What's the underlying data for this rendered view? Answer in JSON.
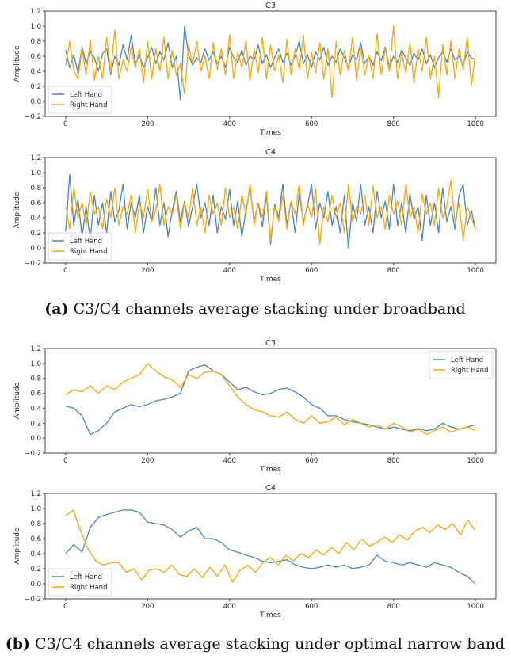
{
  "colors": {
    "left": "#4a86c0",
    "right": "#ffa500",
    "axis": "#444444"
  },
  "captions": [
    {
      "label": "(a)",
      "text": "C3/C4 channels average stacking under broadband"
    },
    {
      "label": "(b)",
      "text": "C3/C4 channels average stacking under optimal narrow band"
    }
  ],
  "chart_data": [
    {
      "type": "line",
      "title": "C3",
      "xlabel": "Times",
      "ylabel": "Amplitude",
      "xlim": [
        -50,
        1050
      ],
      "ylim": [
        -0.2,
        1.2
      ],
      "xticks": [
        "0",
        "200",
        "400",
        "600",
        "800",
        "1000"
      ],
      "yticks": [
        "−0.2",
        "0.0",
        "0.2",
        "0.4",
        "0.6",
        "0.8",
        "1.0",
        "1.2"
      ],
      "legend_placement": "lower-left",
      "x_start": 0,
      "x_end": 1000,
      "series": [
        {
          "name": "Left Hand",
          "values": [
            0.68,
            0.45,
            0.62,
            0.38,
            0.72,
            0.5,
            0.66,
            0.58,
            0.4,
            0.63,
            0.7,
            0.35,
            0.6,
            0.48,
            0.75,
            0.55,
            0.88,
            0.5,
            0.62,
            0.45,
            0.58,
            0.72,
            0.5,
            0.66,
            0.55,
            0.78,
            0.45,
            0.6,
            0.02,
            1.0,
            0.62,
            0.48,
            0.58,
            0.52,
            0.7,
            0.55,
            0.66,
            0.5,
            0.6,
            0.45,
            0.72,
            0.58,
            0.52,
            0.68,
            0.48,
            0.6,
            0.55,
            0.75,
            0.5,
            0.62,
            0.45,
            0.58,
            0.7,
            0.52,
            0.64,
            0.48,
            0.6,
            0.8,
            0.5,
            0.62,
            0.45,
            0.66,
            0.55,
            0.72,
            0.48,
            0.6,
            0.52,
            0.7,
            0.58,
            0.45,
            0.62,
            0.55,
            0.78,
            0.5,
            0.6,
            0.48,
            0.66,
            0.54,
            0.72,
            0.45,
            0.6,
            0.52,
            0.68,
            0.58,
            0.48,
            0.64,
            0.55,
            0.7,
            0.5,
            0.62,
            0.45,
            0.58,
            0.66,
            0.52,
            0.7,
            0.55,
            0.6,
            0.48,
            0.66,
            0.58,
            0.55
          ]
        },
        {
          "name": "Right Hand",
          "values": [
            0.48,
            0.8,
            0.4,
            0.3,
            0.7,
            0.35,
            0.82,
            0.28,
            0.6,
            0.3,
            0.85,
            0.38,
            0.95,
            0.3,
            0.55,
            0.4,
            0.72,
            0.45,
            0.7,
            0.25,
            0.8,
            0.3,
            0.7,
            0.4,
            0.85,
            0.3,
            0.68,
            0.35,
            0.5,
            0.1,
            0.75,
            0.5,
            0.8,
            0.4,
            0.6,
            0.3,
            0.78,
            0.42,
            0.7,
            0.35,
            0.88,
            0.3,
            0.65,
            0.45,
            0.8,
            0.28,
            0.7,
            0.38,
            0.85,
            0.3,
            0.75,
            0.4,
            0.62,
            0.25,
            0.82,
            0.35,
            0.7,
            0.42,
            0.88,
            0.3,
            0.65,
            0.38,
            0.78,
            0.3,
            0.7,
            0.05,
            0.8,
            0.35,
            0.68,
            0.4,
            0.85,
            0.28,
            0.72,
            0.35,
            0.62,
            0.3,
            0.9,
            0.35,
            0.7,
            0.4,
            1.0,
            0.3,
            0.65,
            0.38,
            0.78,
            0.25,
            0.7,
            0.4,
            0.85,
            0.3,
            0.6,
            0.05,
            0.75,
            0.35,
            0.8,
            0.3,
            0.7,
            0.42,
            0.85,
            0.22,
            0.62
          ]
        }
      ]
    },
    {
      "type": "line",
      "title": "C4",
      "xlabel": "Times",
      "ylabel": "Amplitude",
      "xlim": [
        -50,
        1050
      ],
      "ylim": [
        -0.2,
        1.2
      ],
      "xticks": [
        "0",
        "200",
        "400",
        "600",
        "800",
        "1000"
      ],
      "yticks": [
        "−0.2",
        "0.0",
        "0.2",
        "0.4",
        "0.6",
        "0.8",
        "1.0",
        "1.2"
      ],
      "legend_placement": "lower-left",
      "x_start": 0,
      "x_end": 1000,
      "series": [
        {
          "name": "Left Hand",
          "values": [
            0.22,
            0.98,
            0.3,
            0.65,
            0.15,
            0.55,
            0.1,
            0.7,
            0.3,
            0.6,
            0.2,
            0.75,
            0.35,
            0.5,
            0.85,
            0.25,
            0.6,
            0.4,
            0.7,
            0.2,
            0.55,
            0.35,
            0.8,
            0.3,
            0.6,
            0.15,
            0.5,
            0.75,
            0.35,
            0.62,
            0.28,
            0.55,
            0.85,
            0.4,
            0.6,
            0.3,
            0.7,
            0.2,
            0.55,
            0.38,
            0.78,
            0.3,
            0.62,
            0.15,
            0.5,
            0.8,
            0.35,
            0.6,
            0.28,
            0.7,
            0.05,
            0.58,
            0.4,
            0.85,
            0.3,
            0.62,
            0.2,
            0.72,
            0.35,
            0.55,
            0.85,
            0.25,
            0.6,
            0.4,
            0.75,
            0.3,
            0.55,
            0.2,
            0.7,
            0.0,
            0.6,
            0.35,
            0.85,
            0.3,
            0.55,
            0.2,
            0.75,
            0.4,
            0.62,
            0.25,
            0.85,
            0.3,
            0.6,
            0.2,
            0.72,
            0.38,
            0.55,
            0.1,
            0.7,
            0.3,
            0.6,
            0.2,
            0.8,
            0.35,
            0.55,
            0.25,
            0.7,
            0.85,
            0.3,
            0.5,
            0.25
          ]
        },
        {
          "name": "Right Hand",
          "values": [
            0.55,
            0.25,
            0.8,
            0.4,
            0.6,
            0.3,
            0.75,
            0.45,
            0.55,
            0.25,
            0.65,
            0.4,
            0.8,
            0.3,
            0.55,
            0.45,
            0.7,
            0.2,
            0.6,
            0.4,
            0.78,
            0.35,
            0.5,
            0.85,
            0.3,
            0.55,
            0.45,
            0.7,
            0.25,
            0.6,
            0.4,
            0.8,
            0.3,
            0.55,
            0.2,
            0.7,
            0.45,
            0.6,
            0.3,
            0.8,
            0.4,
            0.55,
            0.25,
            0.7,
            0.45,
            0.85,
            0.3,
            0.6,
            0.4,
            0.75,
            0.1,
            0.55,
            0.35,
            0.7,
            0.25,
            0.62,
            0.45,
            0.85,
            0.3,
            0.6,
            0.4,
            0.78,
            0.05,
            0.55,
            0.35,
            0.7,
            0.4,
            0.6,
            0.2,
            0.85,
            0.35,
            0.55,
            0.45,
            0.7,
            0.3,
            0.82,
            0.4,
            0.55,
            0.25,
            0.7,
            0.45,
            0.62,
            0.3,
            0.85,
            0.4,
            0.55,
            0.2,
            0.72,
            0.45,
            0.6,
            0.3,
            0.8,
            0.4,
            0.55,
            0.9,
            0.35,
            0.6,
            0.1,
            0.55,
            0.4,
            0.25
          ]
        }
      ]
    },
    {
      "type": "line",
      "title": "C3",
      "xlabel": "Times",
      "ylabel": "Amplitude",
      "xlim": [
        -50,
        1050
      ],
      "ylim": [
        -0.2,
        1.2
      ],
      "xticks": [
        "0",
        "200",
        "400",
        "600",
        "800",
        "1000"
      ],
      "yticks": [
        "−0.2",
        "0.0",
        "0.2",
        "0.4",
        "0.6",
        "0.8",
        "1.0",
        "1.2"
      ],
      "legend_placement": "upper-right",
      "x_start": 0,
      "x_end": 1000,
      "series": [
        {
          "name": "Left Hand",
          "values": [
            0.43,
            0.4,
            0.3,
            0.05,
            0.1,
            0.2,
            0.35,
            0.4,
            0.45,
            0.42,
            0.45,
            0.5,
            0.52,
            0.55,
            0.6,
            0.9,
            0.95,
            0.98,
            0.9,
            0.85,
            0.75,
            0.65,
            0.68,
            0.62,
            0.58,
            0.6,
            0.65,
            0.67,
            0.62,
            0.55,
            0.45,
            0.4,
            0.3,
            0.3,
            0.25,
            0.22,
            0.2,
            0.18,
            0.15,
            0.12,
            0.15,
            0.12,
            0.1,
            0.13,
            0.1,
            0.12,
            0.2,
            0.15,
            0.12,
            0.15,
            0.18
          ]
        },
        {
          "name": "Right Hand",
          "values": [
            0.58,
            0.65,
            0.62,
            0.7,
            0.6,
            0.7,
            0.65,
            0.75,
            0.8,
            0.85,
            1.0,
            0.9,
            0.82,
            0.78,
            0.68,
            0.85,
            0.8,
            0.88,
            0.9,
            0.85,
            0.7,
            0.55,
            0.45,
            0.38,
            0.35,
            0.3,
            0.28,
            0.35,
            0.25,
            0.2,
            0.3,
            0.2,
            0.22,
            0.28,
            0.18,
            0.25,
            0.2,
            0.15,
            0.18,
            0.12,
            0.2,
            0.15,
            0.08,
            0.12,
            0.05,
            0.1,
            0.15,
            0.08,
            0.12,
            0.15,
            0.1
          ]
        }
      ]
    },
    {
      "type": "line",
      "title": "C4",
      "xlabel": "Times",
      "ylabel": "Amplitude",
      "xlim": [
        -50,
        1050
      ],
      "ylim": [
        -0.2,
        1.2
      ],
      "xticks": [
        "0",
        "200",
        "400",
        "600",
        "800",
        "1000"
      ],
      "yticks": [
        "−0.2",
        "0.0",
        "0.2",
        "0.4",
        "0.6",
        "0.8",
        "1.0",
        "1.2"
      ],
      "legend_placement": "lower-left",
      "x_start": 0,
      "x_end": 1000,
      "series": [
        {
          "name": "Left Hand",
          "values": [
            0.4,
            0.52,
            0.42,
            0.75,
            0.88,
            0.92,
            0.95,
            0.98,
            0.98,
            0.95,
            0.82,
            0.8,
            0.78,
            0.72,
            0.62,
            0.7,
            0.75,
            0.6,
            0.6,
            0.55,
            0.45,
            0.42,
            0.38,
            0.35,
            0.3,
            0.28,
            0.3,
            0.32,
            0.25,
            0.22,
            0.2,
            0.22,
            0.25,
            0.22,
            0.25,
            0.2,
            0.22,
            0.25,
            0.38,
            0.3,
            0.28,
            0.25,
            0.28,
            0.25,
            0.22,
            0.28,
            0.25,
            0.22,
            0.15,
            0.1,
            0.0
          ]
        },
        {
          "name": "Right Hand",
          "values": [
            0.9,
            0.98,
            0.7,
            0.45,
            0.3,
            0.25,
            0.28,
            0.28,
            0.15,
            0.2,
            0.05,
            0.18,
            0.2,
            0.15,
            0.25,
            0.12,
            0.1,
            0.2,
            0.08,
            0.22,
            0.1,
            0.25,
            0.02,
            0.18,
            0.25,
            0.15,
            0.28,
            0.35,
            0.25,
            0.38,
            0.3,
            0.4,
            0.35,
            0.45,
            0.38,
            0.48,
            0.4,
            0.55,
            0.45,
            0.6,
            0.5,
            0.55,
            0.62,
            0.55,
            0.65,
            0.58,
            0.7,
            0.75,
            0.68,
            0.78,
            0.72,
            0.8,
            0.65,
            0.85,
            0.7
          ]
        }
      ]
    }
  ]
}
